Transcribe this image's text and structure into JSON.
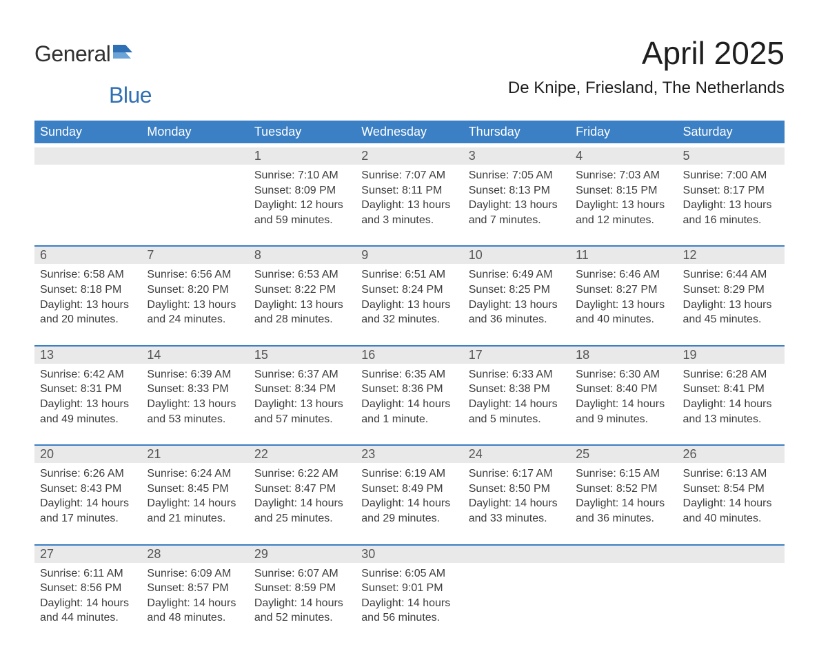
{
  "logo": {
    "general": "General",
    "blue": "Blue"
  },
  "title": "April 2025",
  "location": "De Knipe, Friesland, The Netherlands",
  "colors": {
    "header_bg": "#3b7fc4",
    "header_text": "#ffffff",
    "daynum_bg": "#e9e9e9",
    "rule": "#3b7fc4",
    "logo_blue": "#2f6fb3"
  },
  "daysOfWeek": [
    "Sunday",
    "Monday",
    "Tuesday",
    "Wednesday",
    "Thursday",
    "Friday",
    "Saturday"
  ],
  "weeks": [
    [
      {
        "n": "",
        "sunrise": "",
        "sunset": "",
        "dl1": "",
        "dl2": ""
      },
      {
        "n": "",
        "sunrise": "",
        "sunset": "",
        "dl1": "",
        "dl2": ""
      },
      {
        "n": "1",
        "sunrise": "Sunrise: 7:10 AM",
        "sunset": "Sunset: 8:09 PM",
        "dl1": "Daylight: 12 hours",
        "dl2": "and 59 minutes."
      },
      {
        "n": "2",
        "sunrise": "Sunrise: 7:07 AM",
        "sunset": "Sunset: 8:11 PM",
        "dl1": "Daylight: 13 hours",
        "dl2": "and 3 minutes."
      },
      {
        "n": "3",
        "sunrise": "Sunrise: 7:05 AM",
        "sunset": "Sunset: 8:13 PM",
        "dl1": "Daylight: 13 hours",
        "dl2": "and 7 minutes."
      },
      {
        "n": "4",
        "sunrise": "Sunrise: 7:03 AM",
        "sunset": "Sunset: 8:15 PM",
        "dl1": "Daylight: 13 hours",
        "dl2": "and 12 minutes."
      },
      {
        "n": "5",
        "sunrise": "Sunrise: 7:00 AM",
        "sunset": "Sunset: 8:17 PM",
        "dl1": "Daylight: 13 hours",
        "dl2": "and 16 minutes."
      }
    ],
    [
      {
        "n": "6",
        "sunrise": "Sunrise: 6:58 AM",
        "sunset": "Sunset: 8:18 PM",
        "dl1": "Daylight: 13 hours",
        "dl2": "and 20 minutes."
      },
      {
        "n": "7",
        "sunrise": "Sunrise: 6:56 AM",
        "sunset": "Sunset: 8:20 PM",
        "dl1": "Daylight: 13 hours",
        "dl2": "and 24 minutes."
      },
      {
        "n": "8",
        "sunrise": "Sunrise: 6:53 AM",
        "sunset": "Sunset: 8:22 PM",
        "dl1": "Daylight: 13 hours",
        "dl2": "and 28 minutes."
      },
      {
        "n": "9",
        "sunrise": "Sunrise: 6:51 AM",
        "sunset": "Sunset: 8:24 PM",
        "dl1": "Daylight: 13 hours",
        "dl2": "and 32 minutes."
      },
      {
        "n": "10",
        "sunrise": "Sunrise: 6:49 AM",
        "sunset": "Sunset: 8:25 PM",
        "dl1": "Daylight: 13 hours",
        "dl2": "and 36 minutes."
      },
      {
        "n": "11",
        "sunrise": "Sunrise: 6:46 AM",
        "sunset": "Sunset: 8:27 PM",
        "dl1": "Daylight: 13 hours",
        "dl2": "and 40 minutes."
      },
      {
        "n": "12",
        "sunrise": "Sunrise: 6:44 AM",
        "sunset": "Sunset: 8:29 PM",
        "dl1": "Daylight: 13 hours",
        "dl2": "and 45 minutes."
      }
    ],
    [
      {
        "n": "13",
        "sunrise": "Sunrise: 6:42 AM",
        "sunset": "Sunset: 8:31 PM",
        "dl1": "Daylight: 13 hours",
        "dl2": "and 49 minutes."
      },
      {
        "n": "14",
        "sunrise": "Sunrise: 6:39 AM",
        "sunset": "Sunset: 8:33 PM",
        "dl1": "Daylight: 13 hours",
        "dl2": "and 53 minutes."
      },
      {
        "n": "15",
        "sunrise": "Sunrise: 6:37 AM",
        "sunset": "Sunset: 8:34 PM",
        "dl1": "Daylight: 13 hours",
        "dl2": "and 57 minutes."
      },
      {
        "n": "16",
        "sunrise": "Sunrise: 6:35 AM",
        "sunset": "Sunset: 8:36 PM",
        "dl1": "Daylight: 14 hours",
        "dl2": "and 1 minute."
      },
      {
        "n": "17",
        "sunrise": "Sunrise: 6:33 AM",
        "sunset": "Sunset: 8:38 PM",
        "dl1": "Daylight: 14 hours",
        "dl2": "and 5 minutes."
      },
      {
        "n": "18",
        "sunrise": "Sunrise: 6:30 AM",
        "sunset": "Sunset: 8:40 PM",
        "dl1": "Daylight: 14 hours",
        "dl2": "and 9 minutes."
      },
      {
        "n": "19",
        "sunrise": "Sunrise: 6:28 AM",
        "sunset": "Sunset: 8:41 PM",
        "dl1": "Daylight: 14 hours",
        "dl2": "and 13 minutes."
      }
    ],
    [
      {
        "n": "20",
        "sunrise": "Sunrise: 6:26 AM",
        "sunset": "Sunset: 8:43 PM",
        "dl1": "Daylight: 14 hours",
        "dl2": "and 17 minutes."
      },
      {
        "n": "21",
        "sunrise": "Sunrise: 6:24 AM",
        "sunset": "Sunset: 8:45 PM",
        "dl1": "Daylight: 14 hours",
        "dl2": "and 21 minutes."
      },
      {
        "n": "22",
        "sunrise": "Sunrise: 6:22 AM",
        "sunset": "Sunset: 8:47 PM",
        "dl1": "Daylight: 14 hours",
        "dl2": "and 25 minutes."
      },
      {
        "n": "23",
        "sunrise": "Sunrise: 6:19 AM",
        "sunset": "Sunset: 8:49 PM",
        "dl1": "Daylight: 14 hours",
        "dl2": "and 29 minutes."
      },
      {
        "n": "24",
        "sunrise": "Sunrise: 6:17 AM",
        "sunset": "Sunset: 8:50 PM",
        "dl1": "Daylight: 14 hours",
        "dl2": "and 33 minutes."
      },
      {
        "n": "25",
        "sunrise": "Sunrise: 6:15 AM",
        "sunset": "Sunset: 8:52 PM",
        "dl1": "Daylight: 14 hours",
        "dl2": "and 36 minutes."
      },
      {
        "n": "26",
        "sunrise": "Sunrise: 6:13 AM",
        "sunset": "Sunset: 8:54 PM",
        "dl1": "Daylight: 14 hours",
        "dl2": "and 40 minutes."
      }
    ],
    [
      {
        "n": "27",
        "sunrise": "Sunrise: 6:11 AM",
        "sunset": "Sunset: 8:56 PM",
        "dl1": "Daylight: 14 hours",
        "dl2": "and 44 minutes."
      },
      {
        "n": "28",
        "sunrise": "Sunrise: 6:09 AM",
        "sunset": "Sunset: 8:57 PM",
        "dl1": "Daylight: 14 hours",
        "dl2": "and 48 minutes."
      },
      {
        "n": "29",
        "sunrise": "Sunrise: 6:07 AM",
        "sunset": "Sunset: 8:59 PM",
        "dl1": "Daylight: 14 hours",
        "dl2": "and 52 minutes."
      },
      {
        "n": "30",
        "sunrise": "Sunrise: 6:05 AM",
        "sunset": "Sunset: 9:01 PM",
        "dl1": "Daylight: 14 hours",
        "dl2": "and 56 minutes."
      },
      {
        "n": "",
        "sunrise": "",
        "sunset": "",
        "dl1": "",
        "dl2": ""
      },
      {
        "n": "",
        "sunrise": "",
        "sunset": "",
        "dl1": "",
        "dl2": ""
      },
      {
        "n": "",
        "sunrise": "",
        "sunset": "",
        "dl1": "",
        "dl2": ""
      }
    ]
  ]
}
